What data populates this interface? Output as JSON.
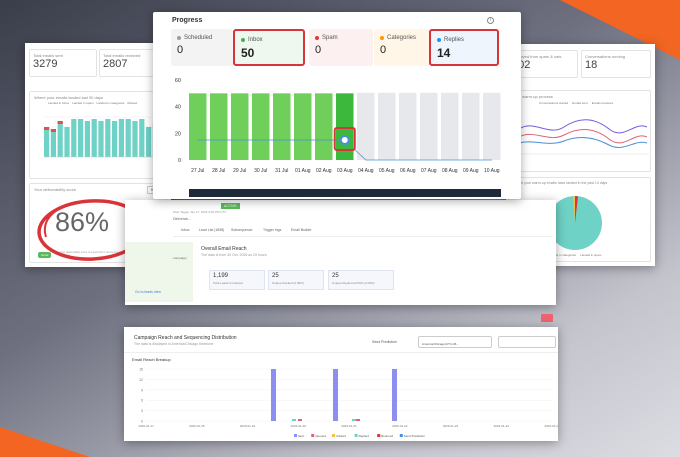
{
  "progress": {
    "title": "Progress",
    "stats": [
      {
        "label": "Scheduled",
        "value": "0",
        "color": "#9e9e9e",
        "bg": "#f3f3f3"
      },
      {
        "label": "Inbox",
        "value": "50",
        "color": "#4caf50",
        "bg": "#eef8ee",
        "highlight": true
      },
      {
        "label": "Spam",
        "value": "0",
        "color": "#e53935",
        "bg": "#fdf0f0"
      },
      {
        "label": "Categories",
        "value": "0",
        "color": "#ff9800",
        "bg": "#fff6e8"
      },
      {
        "label": "Replies",
        "value": "14",
        "color": "#2196f3",
        "bg": "#eef5fd",
        "highlight": true
      }
    ]
  },
  "chart_data": {
    "type": "bar",
    "categories": [
      "27 Jul",
      "28 Jul",
      "29 Jul",
      "30 Jul",
      "31 Jul",
      "01 Aug",
      "02 Aug",
      "03 Aug",
      "04 Aug",
      "05 Aug",
      "06 Aug",
      "07 Aug",
      "08 Aug",
      "09 Aug",
      "10 Aug"
    ],
    "series": [
      {
        "values": [
          50,
          50,
          50,
          50,
          50,
          50,
          50,
          50,
          0,
          0,
          0,
          0,
          0,
          0,
          0
        ]
      }
    ],
    "line": [
      15,
      15,
      15,
      15,
      15,
      15,
      15,
      15,
      0,
      0,
      0,
      0,
      0,
      0,
      0
    ],
    "ylim": [
      0,
      60
    ],
    "yticks": [
      "60",
      "40",
      "20",
      "0"
    ],
    "grid": false
  },
  "left": {
    "stat1": {
      "label": "Total emails sent",
      "value": "3279"
    },
    "stat2": {
      "label": "Total emails received",
      "value": "2807"
    },
    "chart_label": "Where your emails landed last 30 days",
    "legend": [
      "Landed in inbox",
      "Landed in spam",
      "Landed in categories",
      "Missed"
    ],
    "bars": [
      30,
      28,
      36,
      30,
      38,
      38,
      36,
      38,
      36,
      38,
      36,
      38,
      38,
      36,
      38,
      30,
      34,
      33,
      38
    ],
    "score_label": "Your deliverability score",
    "score_btn": "High",
    "score": "86%",
    "good": "Good",
    "note": "Your deliverability score is a good but it can be even better. Warmup is running in progress."
  },
  "right": {
    "stat1": {
      "label": "Removed from spam & cats",
      "value": "102"
    },
    "stat2": {
      "label": "Conversations running",
      "value": "18"
    },
    "chart_label": "Your warm-up process",
    "legend": [
      "Conversations started",
      "Emails sent",
      "Emails received"
    ],
    "pie_label": "Where your warm-up emails have landed in the past 14 days",
    "pie_legend": [
      "Landed in inbox",
      "Landed in categories",
      "Landed in spam"
    ]
  },
  "middle": {
    "status": "ACTIVE",
    "created": "Date Tagger Jan 27, 2026 3:00 PM UTC",
    "owner": "Deliverab...",
    "tabs": [
      "Inbox",
      "Lead List (1898)",
      "Subsequence",
      "Trigger logs",
      "Email Builder"
    ],
    "side_text": "...campaign",
    "side_link": "Go to leads view",
    "reach_title": "Overall Email Reach",
    "reach_sub": "The data is from 30 Oct, 2026 as 24 hours",
    "boxes": [
      {
        "v": "1,199",
        "l": "Total Leads Contacted"
      },
      {
        "v": "25",
        "l": "Unique Replied (2.09%)"
      },
      {
        "v": "25",
        "l": "Unique Replied w/OOO (2.09%)"
      }
    ]
  },
  "bottom": {
    "title": "Campaign Reach and Sequencing Distribution",
    "sub": "The data is displayed in America/Chicago timezone",
    "send_pred": "Send Prediction",
    "tz": "America/Chicago(UTC-06...",
    "breakup": "Email Reach Breakup",
    "yticks": [
      "15",
      "12",
      "9",
      "6",
      "3",
      "0"
    ],
    "dates": [
      "2026-01-17",
      "2026-01-18",
      "2026-01-19",
      "2026-01-20",
      "2026-01-21",
      "2026-01-22",
      "2026-01-23",
      "2026-01-24",
      "2026-01-25"
    ],
    "legend": [
      "Sent",
      "Opened",
      "Clicked",
      "Replied",
      "Bounced",
      "Send Prediction"
    ]
  }
}
